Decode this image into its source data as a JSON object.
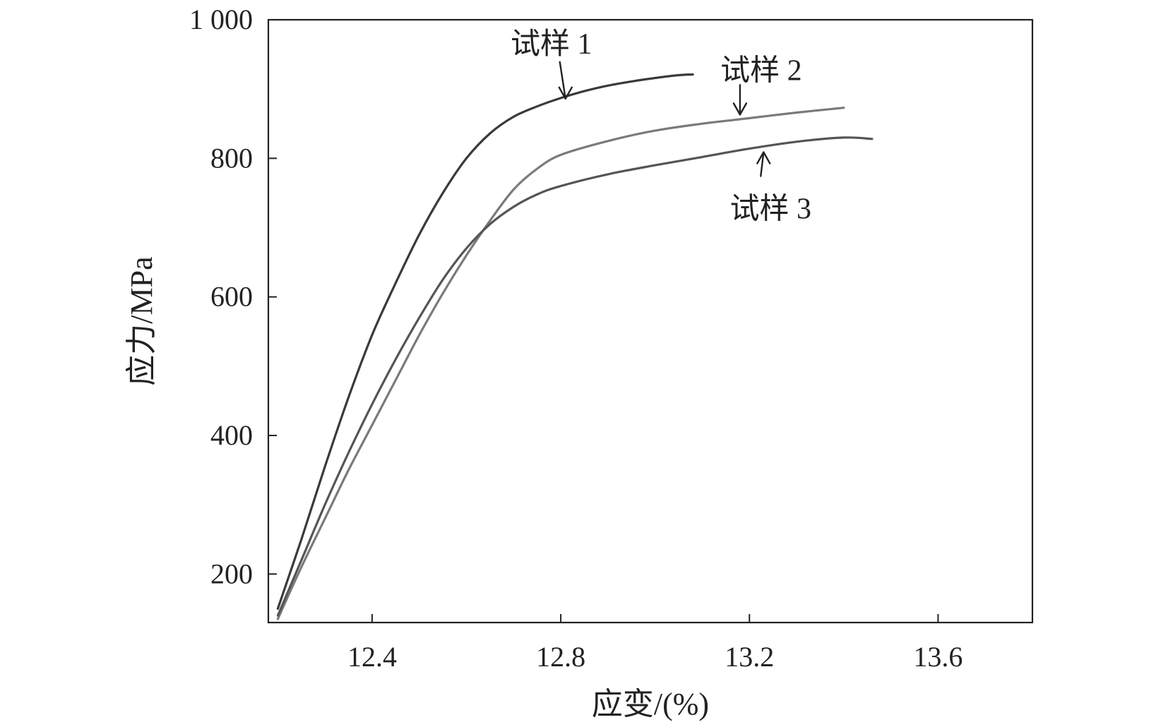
{
  "chart_data": {
    "type": "line",
    "xlabel": "应变/(%)",
    "ylabel": "应力/MPa",
    "xlim": [
      12.18,
      13.8
    ],
    "ylim": [
      130,
      1000
    ],
    "x_ticks": [
      12.4,
      12.8,
      13.2,
      13.6
    ],
    "x_tick_labels": [
      "12.4",
      "12.8",
      "13.2",
      "13.6"
    ],
    "y_ticks": [
      200,
      400,
      600,
      800,
      1000
    ],
    "y_tick_labels": [
      "200",
      "400",
      "600",
      "800",
      "1 000"
    ],
    "grid": false,
    "legend": "none",
    "series": [
      {
        "name": "试样 1",
        "color": "#3a3a3a",
        "x": [
          12.2,
          12.25,
          12.3,
          12.35,
          12.4,
          12.45,
          12.5,
          12.55,
          12.6,
          12.65,
          12.7,
          12.75,
          12.8,
          12.85,
          12.9,
          12.95,
          13.0,
          13.05,
          13.08
        ],
        "y": [
          150,
          250,
          355,
          455,
          545,
          620,
          690,
          750,
          800,
          836,
          860,
          875,
          887,
          897,
          905,
          911,
          916,
          920,
          921
        ]
      },
      {
        "name": "试样 2",
        "color": "#7a7a7a",
        "x": [
          12.2,
          12.25,
          12.3,
          12.35,
          12.4,
          12.45,
          12.5,
          12.55,
          12.6,
          12.65,
          12.7,
          12.75,
          12.8,
          12.9,
          13.0,
          13.1,
          13.2,
          13.3,
          13.4
        ],
        "y": [
          135,
          210,
          280,
          350,
          415,
          480,
          545,
          605,
          660,
          710,
          755,
          785,
          805,
          825,
          840,
          850,
          858,
          866,
          873
        ]
      },
      {
        "name": "试样 3",
        "color": "#555555",
        "x": [
          12.2,
          12.25,
          12.3,
          12.35,
          12.4,
          12.45,
          12.5,
          12.55,
          12.6,
          12.65,
          12.7,
          12.75,
          12.8,
          12.9,
          13.0,
          13.1,
          13.2,
          13.3,
          13.4,
          13.46
        ],
        "y": [
          140,
          220,
          300,
          375,
          445,
          510,
          570,
          625,
          670,
          705,
          730,
          748,
          760,
          777,
          790,
          802,
          814,
          824,
          830,
          828
        ]
      }
    ],
    "annotations": [
      {
        "text": "试样 1",
        "series": 0,
        "point_x": 12.81,
        "point_y": 880
      },
      {
        "text": "试样 2",
        "series": 1,
        "point_x": 13.18,
        "point_y": 857
      },
      {
        "text": "试样 3",
        "series": 2,
        "point_x": 13.23,
        "point_y": 815
      }
    ]
  }
}
